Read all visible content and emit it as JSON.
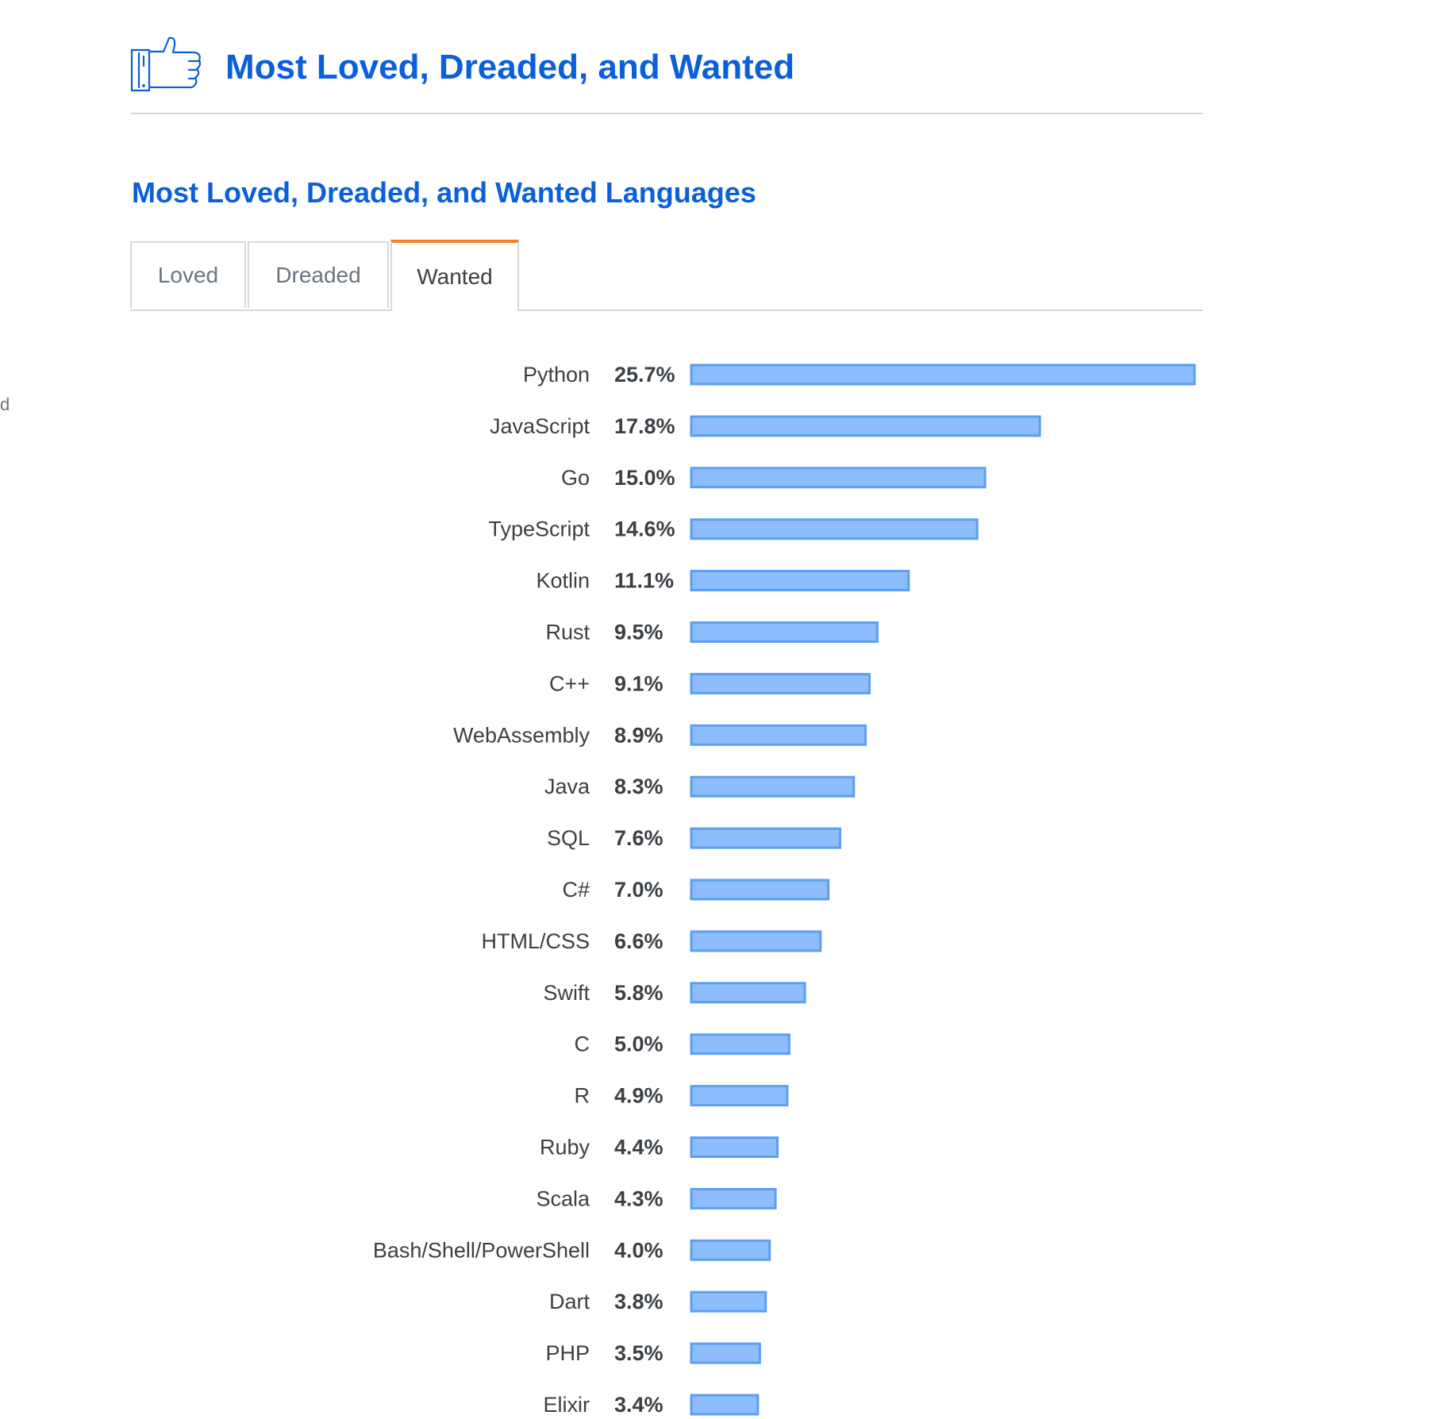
{
  "side_fragment": "d",
  "header": {
    "title": "Most Loved, Dreaded, and Wanted",
    "icon": "thumbs-up-icon"
  },
  "section": {
    "title": "Most Loved, Dreaded, and Wanted Languages"
  },
  "tabs": [
    {
      "label": "Loved",
      "active": false
    },
    {
      "label": "Dreaded",
      "active": false
    },
    {
      "label": "Wanted",
      "active": true
    }
  ],
  "colors": {
    "title_blue": "#0a5fdb",
    "bar_fill": "#8dbdfd",
    "bar_stroke": "#5b9ef4",
    "tab_active_accent": "#f48024"
  },
  "chart_data": {
    "type": "bar",
    "orientation": "horizontal",
    "value_format": "percent",
    "categories": [
      "Python",
      "JavaScript",
      "Go",
      "TypeScript",
      "Kotlin",
      "Rust",
      "C++",
      "WebAssembly",
      "Java",
      "SQL",
      "C#",
      "HTML/CSS",
      "Swift",
      "C",
      "R",
      "Ruby",
      "Scala",
      "Bash/Shell/PowerShell",
      "Dart",
      "PHP",
      "Elixir"
    ],
    "values": [
      25.7,
      17.8,
      15.0,
      14.6,
      11.1,
      9.5,
      9.1,
      8.9,
      8.3,
      7.6,
      7.0,
      6.6,
      5.8,
      5.0,
      4.9,
      4.4,
      4.3,
      4.0,
      3.8,
      3.5,
      3.4
    ],
    "value_labels": [
      "25.7%",
      "17.8%",
      "15.0%",
      "14.6%",
      "11.1%",
      "9.5%",
      "9.1%",
      "8.9%",
      "8.3%",
      "7.6%",
      "7.0%",
      "6.6%",
      "5.8%",
      "5.0%",
      "4.9%",
      "4.4%",
      "4.3%",
      "4.0%",
      "3.8%",
      "3.5%",
      "3.4%"
    ],
    "xlim": [
      0,
      25.7
    ],
    "grid": false,
    "legend": "none"
  }
}
